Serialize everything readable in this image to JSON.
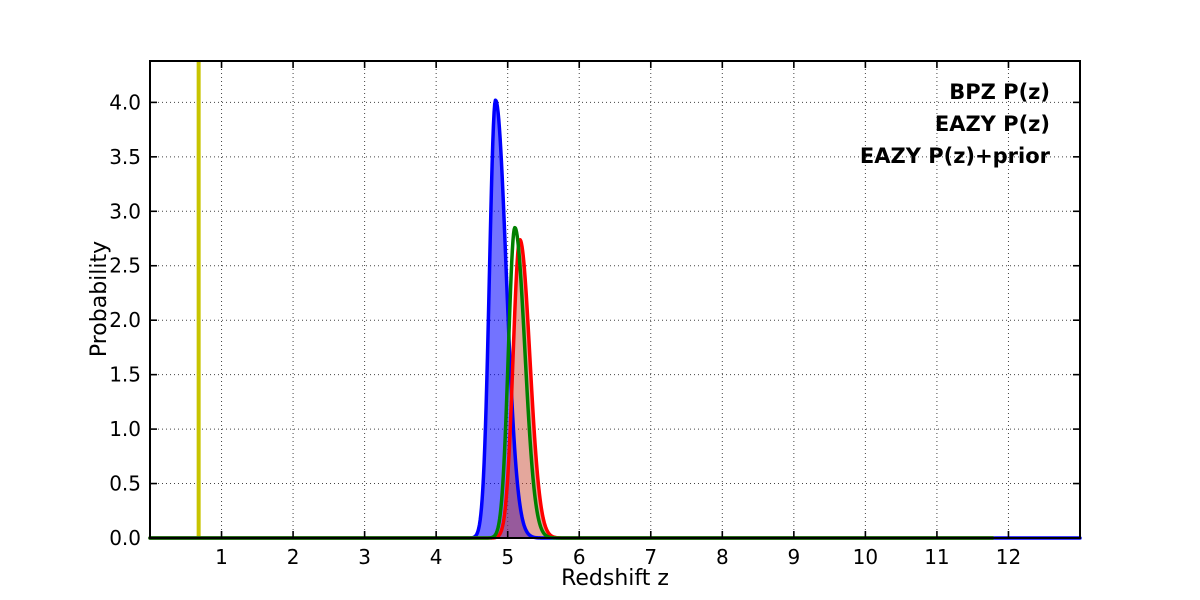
{
  "chart_data": {
    "type": "line",
    "title": "",
    "xlabel": "Redshift z",
    "ylabel": "Probability",
    "xlim": [
      0,
      13
    ],
    "ylim": [
      0,
      4.38
    ],
    "xticks": [
      1,
      2,
      3,
      4,
      5,
      6,
      7,
      8,
      9,
      10,
      11,
      12
    ],
    "xtick_labels": [
      "1",
      "2",
      "3",
      "4",
      "5",
      "6",
      "7",
      "8",
      "9",
      "10",
      "11",
      "12"
    ],
    "yticks": [
      0,
      0.5,
      1.0,
      1.5,
      2.0,
      2.5,
      3.0,
      3.5,
      4.0
    ],
    "ytick_labels": [
      "0.0",
      "0.5",
      "1.0",
      "1.5",
      "2.0",
      "2.5",
      "3.0",
      "3.5",
      "4.0"
    ],
    "grid": {
      "enabled": true,
      "style": "dotted",
      "color": "#444444"
    },
    "legend": {
      "position": "upper-right",
      "frame": false,
      "entries": [
        {
          "label": "BPZ P(z)",
          "color": "#0000ff"
        },
        {
          "label": "EAZY P(z)",
          "color": "#ff0000"
        },
        {
          "label": "EAZY P(z)+prior",
          "color": "#008000"
        }
      ]
    },
    "marker_line": {
      "orientation": "vertical",
      "z": 0.68,
      "color": "#c8c400",
      "width": 4
    },
    "series": [
      {
        "name": "BPZ P(z)",
        "line_color": "#0000ff",
        "fill_color": "rgba(0,0,255,0.55)",
        "line_width": 3.5,
        "peak_z": 4.83,
        "peak_p": 4.02,
        "sigma_left": 0.085,
        "sigma_right": 0.15,
        "z_start": 0,
        "z_end": 13,
        "points": [
          [
            4.4,
            0.0
          ],
          [
            4.5,
            0.0
          ],
          [
            4.6,
            0.14
          ],
          [
            4.7,
            1.49
          ],
          [
            4.8,
            3.91
          ],
          [
            4.83,
            4.02
          ],
          [
            4.9,
            3.49
          ],
          [
            5.0,
            1.96
          ],
          [
            5.1,
            0.7
          ],
          [
            5.2,
            0.16
          ],
          [
            5.3,
            0.02
          ],
          [
            5.4,
            0.0
          ]
        ]
      },
      {
        "name": "EAZY P(z)",
        "line_color": "#ff0000",
        "fill_color": "rgba(195,60,35,0.45)",
        "line_width": 3.5,
        "peak_z": 5.17,
        "peak_p": 2.74,
        "sigma_left": 0.095,
        "sigma_right": 0.14,
        "z_start": 0,
        "z_end": 11.78,
        "points": [
          [
            4.8,
            0.0
          ],
          [
            4.9,
            0.05
          ],
          [
            5.0,
            0.55
          ],
          [
            5.1,
            2.09
          ],
          [
            5.17,
            2.74
          ],
          [
            5.2,
            2.68
          ],
          [
            5.3,
            1.78
          ],
          [
            5.4,
            0.71
          ],
          [
            5.5,
            0.17
          ],
          [
            5.6,
            0.02
          ],
          [
            5.7,
            0.0
          ]
        ]
      },
      {
        "name": "EAZY P(z)+prior",
        "line_color": "#008000",
        "fill_color": null,
        "line_width": 3.5,
        "peak_z": 5.1,
        "peak_p": 2.85,
        "sigma_left": 0.09,
        "sigma_right": 0.14,
        "z_start": 0,
        "z_end": 11.78,
        "points": [
          [
            4.7,
            0.0
          ],
          [
            4.8,
            0.01
          ],
          [
            4.9,
            0.24
          ],
          [
            5.0,
            1.54
          ],
          [
            5.1,
            2.85
          ],
          [
            5.2,
            2.21
          ],
          [
            5.3,
            1.03
          ],
          [
            5.4,
            0.29
          ],
          [
            5.5,
            0.05
          ],
          [
            5.6,
            0.0
          ]
        ]
      }
    ]
  }
}
